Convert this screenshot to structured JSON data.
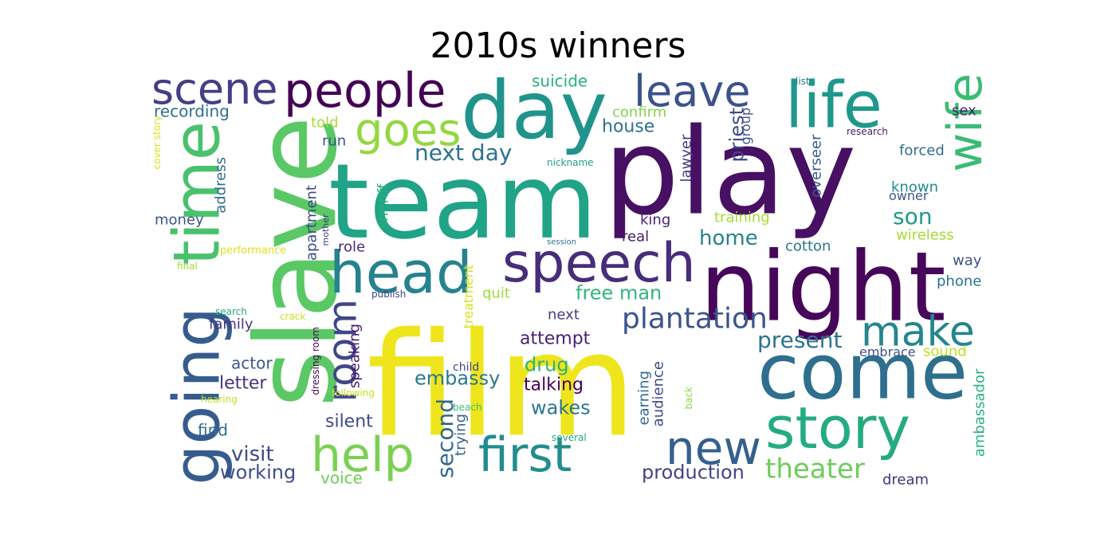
{
  "title": "2010s winners",
  "palette": [
    "#440154",
    "#482878",
    "#3e4989",
    "#31688e",
    "#26828e",
    "#1f9e89",
    "#35b779",
    "#6ece58",
    "#b5de2b",
    "#fde725"
  ],
  "words": [
    {
      "text": "film",
      "color": "#efe51c"
    },
    {
      "text": "play",
      "color": "#471063"
    },
    {
      "text": "team",
      "color": "#20a386"
    },
    {
      "text": "slave",
      "color": "#5ac864"
    },
    {
      "text": "night",
      "color": "#46075a"
    },
    {
      "text": "day",
      "color": "#20938c"
    },
    {
      "text": "come",
      "color": "#2e6f8e"
    },
    {
      "text": "life",
      "color": "#1f988b"
    },
    {
      "text": "time",
      "color": "#4ac16d"
    },
    {
      "text": "going",
      "color": "#365c8d"
    },
    {
      "text": "speech",
      "color": "#472d7b"
    },
    {
      "text": "story",
      "color": "#25ab82"
    },
    {
      "text": "head",
      "color": "#26828e"
    },
    {
      "text": "people",
      "color": "#440154"
    },
    {
      "text": "scene",
      "color": "#433e85"
    },
    {
      "text": "wife",
      "color": "#3bbb75"
    },
    {
      "text": "leave",
      "color": "#3b528b"
    },
    {
      "text": "first",
      "color": "#228d8d"
    },
    {
      "text": "help",
      "color": "#7ad151"
    },
    {
      "text": "new",
      "color": "#34608d"
    },
    {
      "text": "make",
      "color": "#24868e"
    },
    {
      "text": "goes",
      "color": "#93d741"
    },
    {
      "text": "room",
      "color": "#3f4788"
    },
    {
      "text": "plantation",
      "color": "#3a548c"
    },
    {
      "text": "theater",
      "color": "#6ccd5a"
    },
    {
      "text": "next day",
      "color": "#2c738e"
    },
    {
      "text": "second",
      "color": "#31688e"
    },
    {
      "text": "present",
      "color": "#2c728e"
    },
    {
      "text": "embassy",
      "color": "#2a778e"
    },
    {
      "text": "son",
      "color": "#1f9a8a"
    },
    {
      "text": "visit",
      "color": "#3e4a89"
    },
    {
      "text": "working",
      "color": "#3d4e8a"
    },
    {
      "text": "production",
      "color": "#414487"
    },
    {
      "text": "home",
      "color": "#26828e"
    },
    {
      "text": "drug",
      "color": "#2db27d"
    },
    {
      "text": "wakes",
      "color": "#2a788e"
    },
    {
      "text": "free man",
      "color": "#31b57b"
    },
    {
      "text": "priest",
      "color": "#3f4889"
    },
    {
      "text": "house",
      "color": "#2c728e"
    },
    {
      "text": "talking",
      "color": "#440154"
    },
    {
      "text": "letter",
      "color": "#46327e"
    },
    {
      "text": "attempt",
      "color": "#482173"
    },
    {
      "text": "silent",
      "color": "#3e4989"
    },
    {
      "text": "voice",
      "color": "#6ece58"
    },
    {
      "text": "find",
      "color": "#2d708e"
    },
    {
      "text": "actor",
      "color": "#38598c"
    },
    {
      "text": "suicide",
      "color": "#29af7f"
    },
    {
      "text": "recording",
      "color": "#2d708e"
    },
    {
      "text": "confirm",
      "color": "#84d44b"
    },
    {
      "text": "told",
      "color": "#aadc32"
    },
    {
      "text": "run",
      "color": "#3b528b"
    },
    {
      "text": "family",
      "color": "#453781"
    },
    {
      "text": "role",
      "color": "#472c7a"
    },
    {
      "text": "money",
      "color": "#3a538b"
    },
    {
      "text": "address",
      "color": "#2f6c8e"
    },
    {
      "text": "apartment",
      "color": "#3e4989"
    },
    {
      "text": "sheriff",
      "color": "#29af7f"
    },
    {
      "text": "speaking",
      "color": "#481b6d"
    },
    {
      "text": "trying",
      "color": "#355f8d"
    },
    {
      "text": "quit",
      "color": "#a0da39"
    },
    {
      "text": "next",
      "color": "#433e85"
    },
    {
      "text": "king",
      "color": "#482475"
    },
    {
      "text": "real",
      "color": "#48186a"
    },
    {
      "text": "training",
      "color": "#a5db36"
    },
    {
      "text": "lawyer",
      "color": "#443a83"
    },
    {
      "text": "group",
      "color": "#3b528b"
    },
    {
      "text": "overseer",
      "color": "#375a8c"
    },
    {
      "text": "cotton",
      "color": "#2a788e"
    },
    {
      "text": "earning",
      "color": "#31688e"
    },
    {
      "text": "audience",
      "color": "#3e4989"
    },
    {
      "text": "forced",
      "color": "#2e6f8e"
    },
    {
      "text": "known",
      "color": "#238a8d"
    },
    {
      "text": "owner",
      "color": "#38598c"
    },
    {
      "text": "wireless",
      "color": "#a8db34"
    },
    {
      "text": "way",
      "color": "#3b528b"
    },
    {
      "text": "phone",
      "color": "#2c728e"
    },
    {
      "text": "sex",
      "color": "#481f70"
    },
    {
      "text": "embrace",
      "color": "#3b528b"
    },
    {
      "text": "sound",
      "color": "#c2df23"
    },
    {
      "text": "ambassador",
      "color": "#2ab07f"
    },
    {
      "text": "dream",
      "color": "#46337f"
    },
    {
      "text": "treatment",
      "color": "#d2e21b"
    },
    {
      "text": "dressing room",
      "color": "#440154"
    },
    {
      "text": "performance",
      "color": "#dde318"
    },
    {
      "text": "cover story",
      "color": "#d8e219"
    },
    {
      "text": "final",
      "color": "#a5db36"
    },
    {
      "text": "search",
      "color": "#22a884"
    },
    {
      "text": "crack",
      "color": "#cae11f"
    },
    {
      "text": "hearing",
      "color": "#c0df25"
    },
    {
      "text": "following",
      "color": "#c8e020"
    },
    {
      "text": "publish",
      "color": "#414487"
    },
    {
      "text": "child",
      "color": "#3e4989"
    },
    {
      "text": "beach",
      "color": "#3dbc74"
    },
    {
      "text": "several",
      "color": "#22a884"
    },
    {
      "text": "back",
      "color": "#8ed645"
    },
    {
      "text": "session",
      "color": "#2c728e"
    },
    {
      "text": "nickname",
      "color": "#1fa088"
    },
    {
      "text": "mother",
      "color": "#453781"
    },
    {
      "text": "list",
      "color": "#2a788e"
    },
    {
      "text": "research",
      "color": "#481a6c"
    }
  ]
}
